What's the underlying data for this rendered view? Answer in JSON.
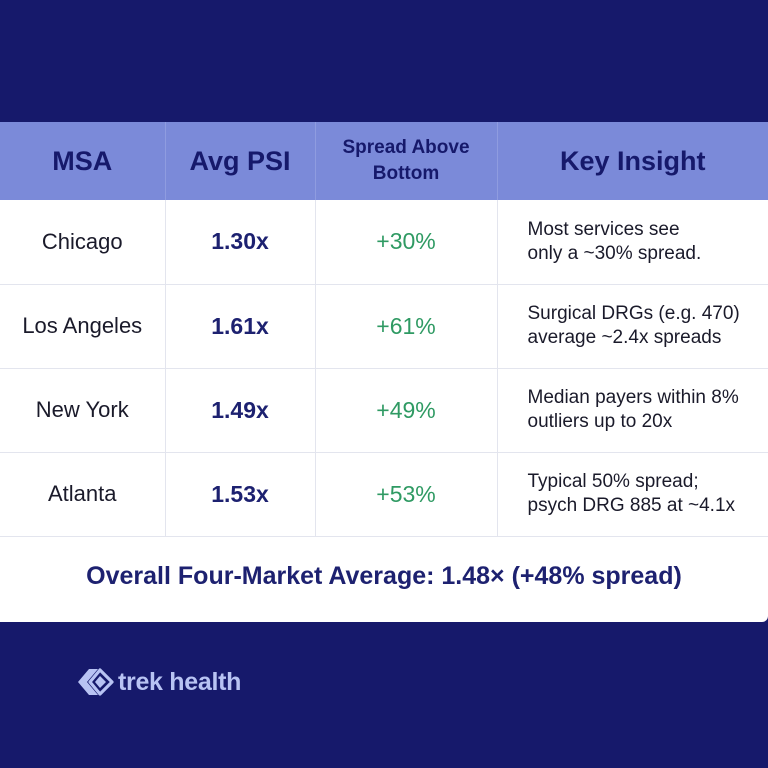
{
  "table": {
    "headers": {
      "msa": "MSA",
      "avg_psi": "Avg PSI",
      "spread_line1": "Spread Above",
      "spread_line2": "Bottom",
      "insight": "Key Insight"
    },
    "rows": [
      {
        "msa": "Chicago",
        "avg_psi": "1.30x",
        "spread": "+30%",
        "insight_1": "Most services see",
        "insight_2": "only a ~30% spread."
      },
      {
        "msa": "Los Angeles",
        "avg_psi": "1.61x",
        "spread": "+61%",
        "insight_1": "Surgical DRGs (e.g. 470)",
        "insight_2": "average ~2.4x spreads"
      },
      {
        "msa": "New York",
        "avg_psi": "1.49x",
        "spread": "+49%",
        "insight_1": "Median payers within 8%",
        "insight_2": "outliers up to 20x"
      },
      {
        "msa": "Atlanta",
        "avg_psi": "1.53x",
        "spread": "+53%",
        "insight_1": "Typical 50% spread;",
        "insight_2": "psych DRG 885 at ~4.1x"
      }
    ],
    "summary": "Overall Four-Market Average: 1.48× (+48% spread)"
  },
  "brand": {
    "name": "trek health",
    "icon": "trek-health-logo-icon"
  },
  "colors": {
    "background": "#16196b",
    "header_band": "#7b8ad9",
    "psi_text": "#1d2170",
    "spread_text": "#2f9a63",
    "logo": "#b8c3f3"
  },
  "chart_data": {
    "type": "table",
    "columns": [
      "MSA",
      "Avg PSI",
      "Spread Above Bottom",
      "Key Insight"
    ],
    "rows": [
      [
        "Chicago",
        "1.30x",
        "+30%",
        "Most services see only a ~30% spread."
      ],
      [
        "Los Angeles",
        "1.61x",
        "+61%",
        "Surgical DRGs (e.g. 470) average ~2.4x spreads"
      ],
      [
        "New York",
        "1.49x",
        "+49%",
        "Median payers within 8% outliers up to 20x"
      ],
      [
        "Atlanta",
        "1.53x",
        "+53%",
        "Typical 50% spread; psych DRG 885 at ~4.1x"
      ]
    ],
    "footer": "Overall Four-Market Average: 1.48× (+48% spread)"
  }
}
